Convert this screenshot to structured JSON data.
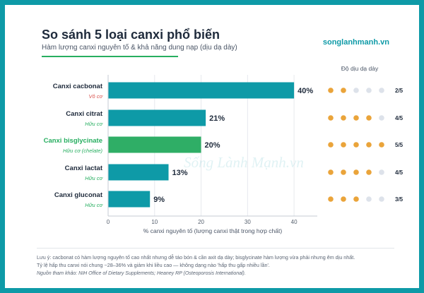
{
  "header": {
    "title": "So sánh 5 loại canxi phổ biến",
    "subtitle": "Hàm lượng canxi nguyên tố & khả năng dung nạp (dịu dạ dày)",
    "brand": "songlanhmanh.vn"
  },
  "watermark": "Sống Lành Mạnh.vn",
  "colors": {
    "bar_default": "#0e9aa7",
    "bar_highlight": "#2fae66",
    "dot_on": "#eaa43a",
    "dot_off": "#dde2ea",
    "category_inorganic": "#d9534f",
    "category_organic": "#27ae60",
    "frame": "#0e9aa7"
  },
  "chart_data": {
    "type": "bar",
    "orientation": "horizontal",
    "categories": [
      "Canxi cacbonat",
      "Canxi citrat",
      "Canxi bisglycinate",
      "Canxi lactat",
      "Canxi gluconat"
    ],
    "sublabels": [
      "Vô cơ",
      "Hữu cơ",
      "Hữu cơ (chelate)",
      "Hữu cơ",
      "Hữu cơ"
    ],
    "values": [
      40,
      21,
      20,
      13,
      9
    ],
    "value_labels": [
      "40%",
      "21%",
      "20%",
      "13%",
      "9%"
    ],
    "highlight_index": 2,
    "xlabel": "% canxi nguyên tố (lượng canxi thật trong hợp chất)",
    "xlim": [
      0,
      45
    ],
    "xticks": [
      0,
      10,
      20,
      30,
      40
    ],
    "grid": true,
    "tolerance": {
      "title": "Độ dịu dạ dày",
      "max": 5,
      "scores": [
        2,
        4,
        5,
        4,
        3
      ],
      "labels": [
        "2/5",
        "4/5",
        "5/5",
        "4/5",
        "3/5"
      ]
    }
  },
  "notes": {
    "line1": "Lưu ý: cacbonat có hàm lượng nguyên tố cao nhất nhưng dễ táo bón & cần axit dạ dày; bisglycinate hàm lượng vừa phải nhưng êm dịu nhất.",
    "line2": "Tỷ lệ hấp thu canxi nói chung ~28–36% và giảm khi liều cao — không dạng nào 'hấp thu gấp nhiều lần'.",
    "source": "Nguồn tham khảo: NIH Office of Dietary Supplements; Heaney RP (Osteoporosis International)."
  }
}
